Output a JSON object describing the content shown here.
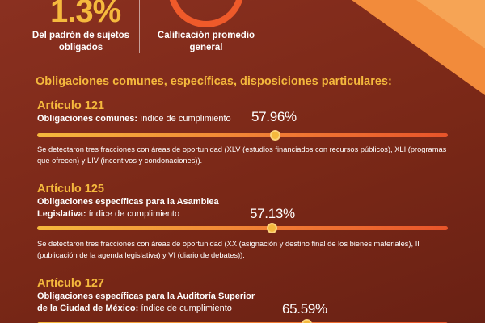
{
  "header": {
    "stat_value": "1.3%",
    "stat_caption": "Del padrón de sujetos obligados",
    "gauge_caption": "Calificación promedio general"
  },
  "section_title": "Obligaciones comunes, específicas, disposiciones particulares:",
  "articles": [
    {
      "title": "Artículo 121",
      "desc_bold": "Obligaciones comunes:",
      "desc_rest": " índice de cumplimiento",
      "percent_label": "57.96%",
      "percent_value": 57.96,
      "note": "Se detectaron tres fracciones con áreas de oportunidad (XLV (estudios financiados con recursos públicos), XLI (programas que ofrecen) y LIV (incentivos y condonaciones))."
    },
    {
      "title": "Artículo 125",
      "desc_bold": "Obligaciones específicas para la Asamblea Legislativa:",
      "desc_rest": " índice de cumplimiento",
      "percent_label": "57.13%",
      "percent_value": 57.13,
      "note": "Se detectaron tres fracciones con áreas de oportunidad (XX (asignación y destino final de los bienes materiales), II (publicación de la agenda legislativa) y VI (diario de debates))."
    },
    {
      "title": "Artículo 127",
      "desc_bold": "Obligaciones específicas para la Auditoría Superior de la Ciudad de México:",
      "desc_rest": " índice de cumplimiento",
      "percent_label": "65.59%",
      "percent_value": 65.59,
      "note": ""
    }
  ],
  "colors": {
    "background": "#7c2a1a",
    "accent_yellow": "#f5b93d",
    "accent_orange": "#f07a34",
    "accent_red": "#e8542a"
  }
}
